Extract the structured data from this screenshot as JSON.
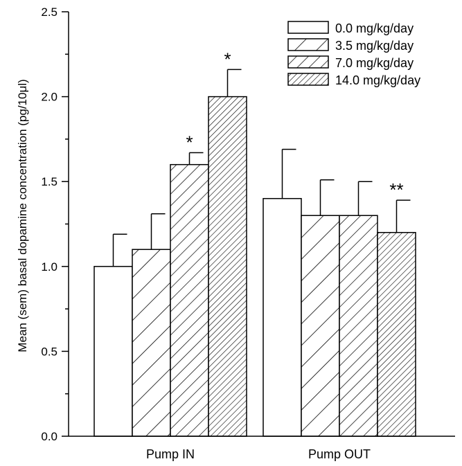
{
  "chart_data": {
    "type": "bar",
    "title": "",
    "xlabel": "",
    "ylabel": "Mean (sem) basal dopamine concentration (pg/10μl)",
    "ylim": [
      0,
      2.5
    ],
    "yticks": [
      "0.0",
      "0.5",
      "1.0",
      "1.5",
      "2.0",
      "2.5"
    ],
    "grid": false,
    "legend_position": "top-right",
    "categories": [
      "Pump IN",
      "Pump OUT"
    ],
    "series": [
      {
        "name": "0.0 mg/kg/day",
        "values": [
          1.0,
          1.4
        ],
        "errors": [
          0.19,
          0.29
        ],
        "annotations": [
          "",
          ""
        ],
        "fill": "none"
      },
      {
        "name": "3.5 mg/kg/day",
        "values": [
          1.1,
          1.3
        ],
        "errors": [
          0.21,
          0.21
        ],
        "annotations": [
          "",
          ""
        ],
        "fill": "wide-hatch"
      },
      {
        "name": "7.0 mg/kg/day",
        "values": [
          1.6,
          1.3
        ],
        "errors": [
          0.07,
          0.2
        ],
        "annotations": [
          "*",
          ""
        ],
        "fill": "medium-hatch"
      },
      {
        "name": "14.0 mg/kg/day",
        "values": [
          2.0,
          1.2
        ],
        "errors": [
          0.16,
          0.19
        ],
        "annotations": [
          "*",
          "**"
        ],
        "fill": "dense-hatch"
      }
    ]
  }
}
